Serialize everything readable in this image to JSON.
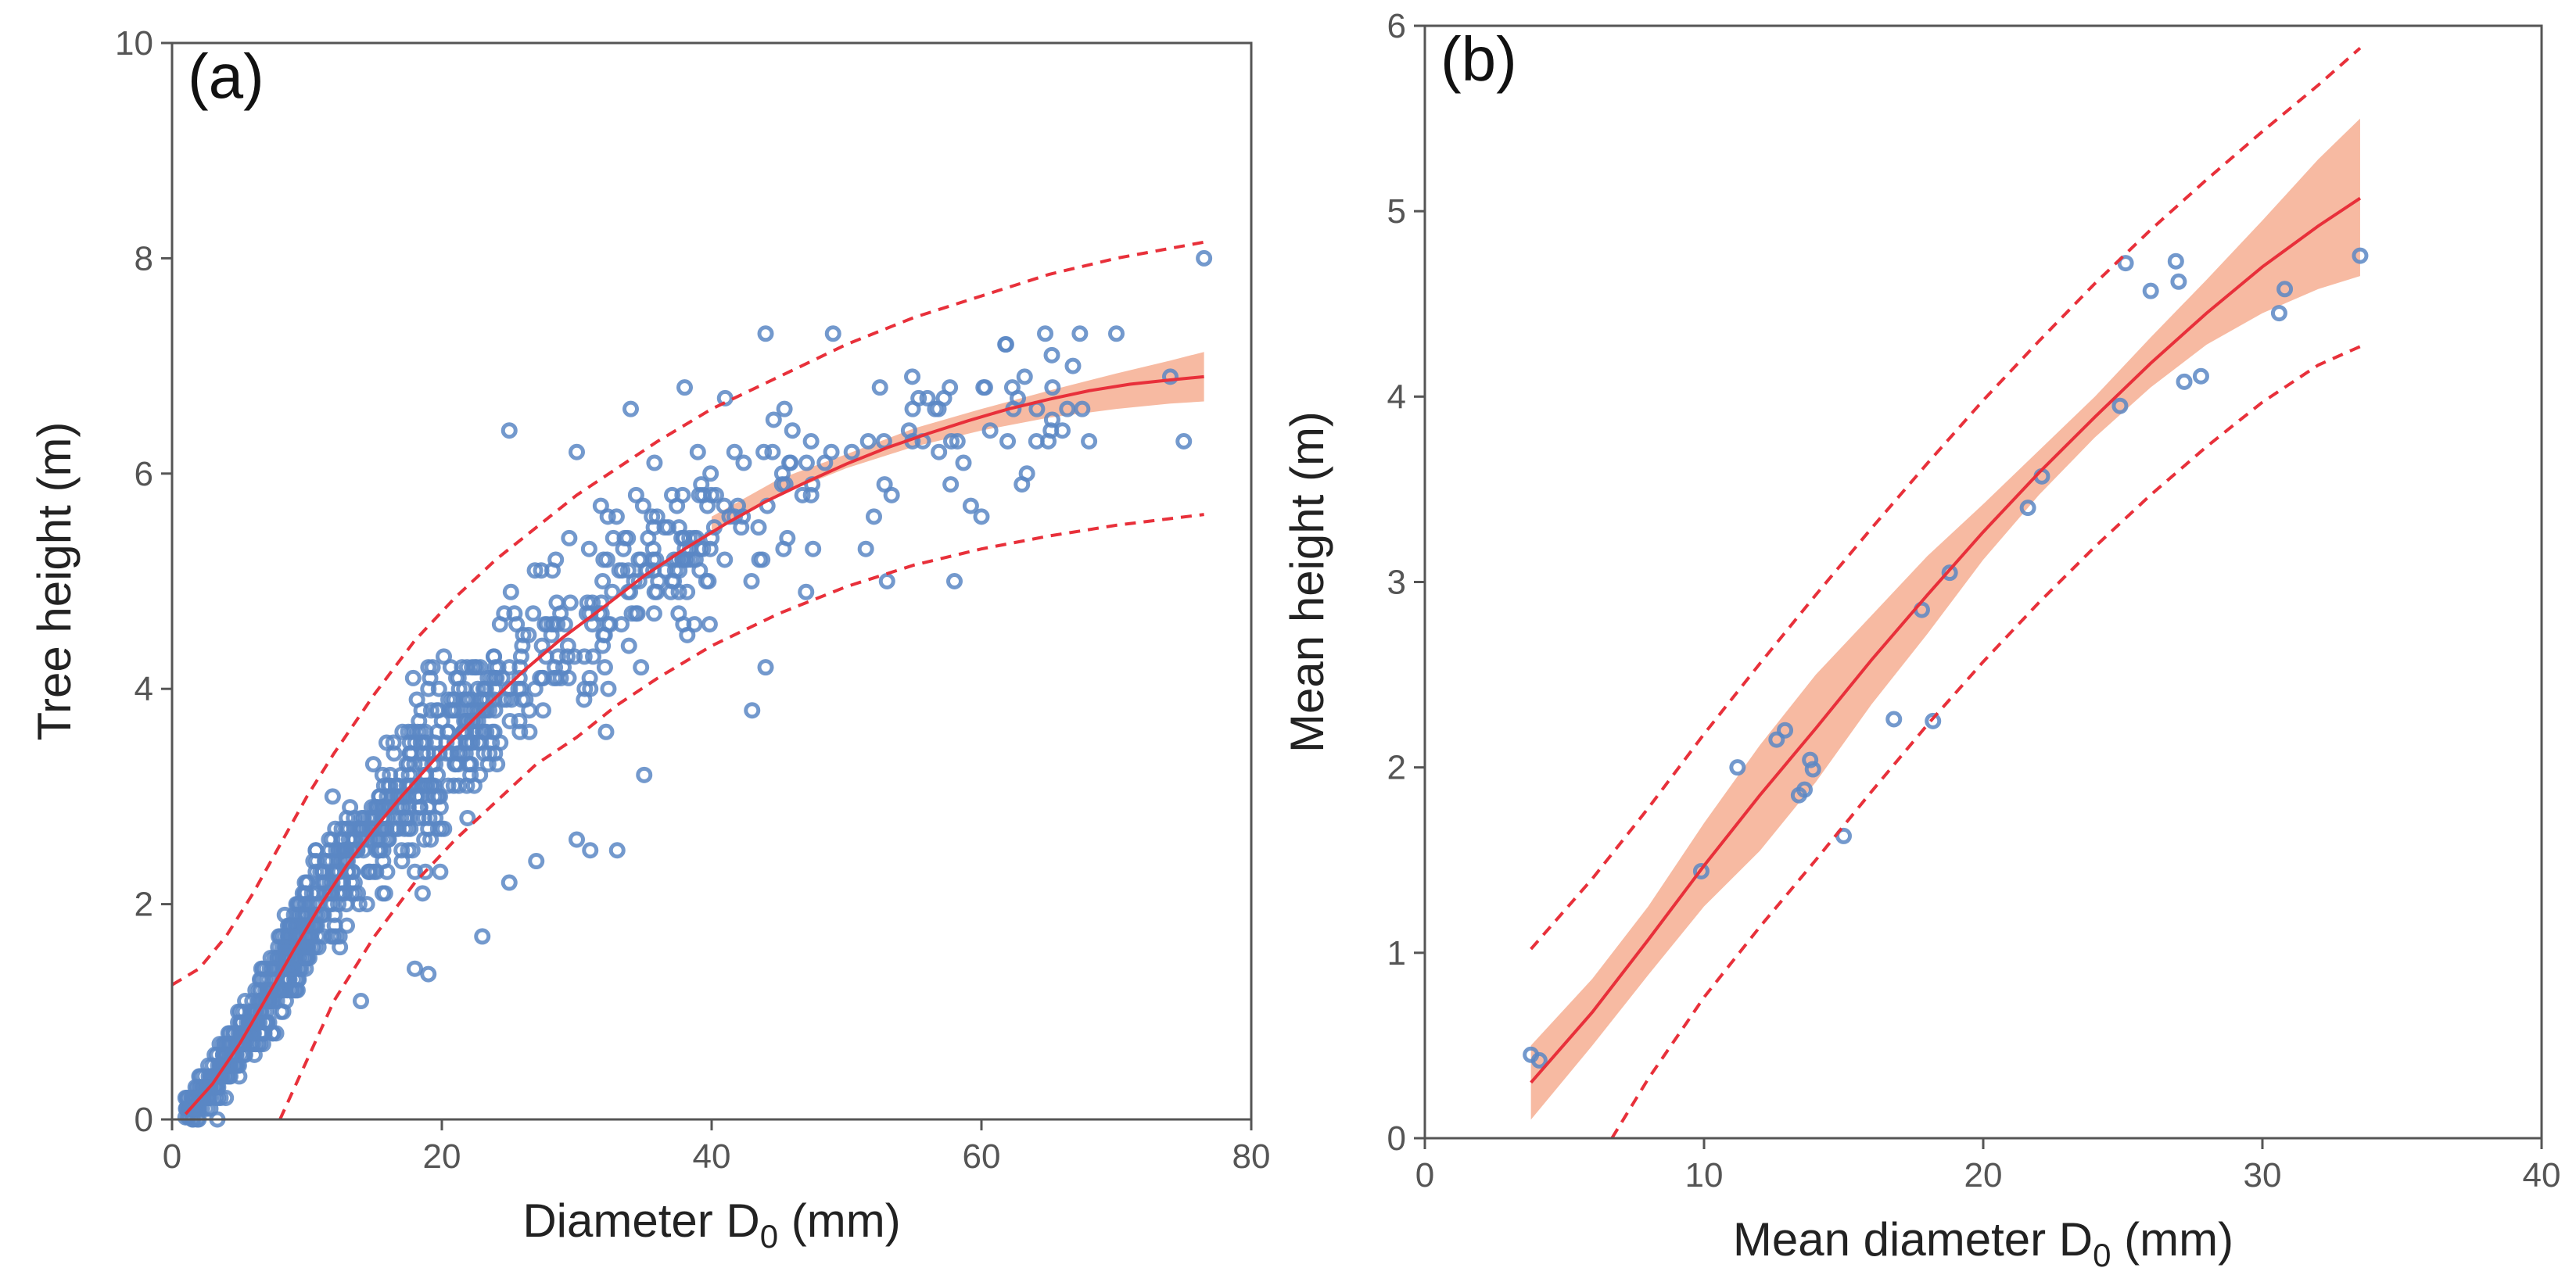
{
  "colors": {
    "points": "#5b87c4",
    "fit_line": "#e8303a",
    "band": "#f4a383",
    "prediction": "#e8303a",
    "axes": "#555555"
  },
  "chart_data": [
    {
      "type": "scatter",
      "panel_label": "(a)",
      "xlabel_main": "Diameter D",
      "xlabel_sub": "0",
      "xlabel_unit": " (mm)",
      "ylabel": "Tree height (m)",
      "xlim": [
        0,
        80
      ],
      "ylim": [
        0,
        10
      ],
      "xticks": [
        0,
        20,
        40,
        60,
        80
      ],
      "yticks": [
        0,
        2,
        4,
        6,
        8,
        10
      ],
      "generated_seed": 7,
      "series": [
        {
          "name": "observations",
          "kind": "points",
          "sampled_points": [
            [
              76.5,
              8.0
            ],
            [
              74,
              6.9
            ],
            [
              75,
              6.3
            ],
            [
              70,
              7.3
            ],
            [
              66,
              6.4
            ],
            [
              63,
              5.9
            ],
            [
              60,
              5.6
            ],
            [
              58,
              5.0
            ],
            [
              56,
              6.7
            ],
            [
              53,
              5.0
            ],
            [
              49,
              7.3
            ],
            [
              44,
              7.3
            ],
            [
              43,
              3.8
            ],
            [
              44,
              4.2
            ],
            [
              47,
              4.9
            ],
            [
              35,
              3.2
            ],
            [
              33,
              2.5
            ],
            [
              31,
              2.5
            ],
            [
              30,
              2.6
            ],
            [
              27,
              2.4
            ],
            [
              25,
              2.2
            ],
            [
              23,
              1.7
            ],
            [
              19,
              1.35
            ],
            [
              18,
              1.4
            ],
            [
              14,
              1.1
            ],
            [
              34,
              6.6
            ],
            [
              25,
              6.4
            ],
            [
              30,
              6.2
            ],
            [
              38,
              6.8
            ],
            [
              41,
              6.7
            ]
          ]
        },
        {
          "name": "fit",
          "kind": "line",
          "x": [
            1,
            3,
            5,
            7,
            9,
            11,
            13,
            15,
            17,
            20,
            23,
            26,
            29,
            32,
            35,
            38,
            41,
            44,
            47,
            50,
            53,
            56,
            59,
            62,
            65,
            68,
            71,
            74,
            76.5
          ],
          "y": [
            0.05,
            0.33,
            0.7,
            1.13,
            1.57,
            1.99,
            2.37,
            2.7,
            3.0,
            3.42,
            3.8,
            4.16,
            4.48,
            4.76,
            5.05,
            5.3,
            5.53,
            5.74,
            5.92,
            6.09,
            6.24,
            6.37,
            6.49,
            6.6,
            6.69,
            6.77,
            6.83,
            6.87,
            6.9
          ]
        },
        {
          "name": "confidence_band",
          "kind": "band",
          "x": [
            40,
            45,
            50,
            55,
            60,
            65,
            70,
            74,
            76.5
          ],
          "lower": [
            5.45,
            5.8,
            6.05,
            6.25,
            6.4,
            6.52,
            6.6,
            6.65,
            6.67
          ],
          "upper": [
            5.6,
            5.95,
            6.18,
            6.42,
            6.6,
            6.77,
            6.93,
            7.05,
            7.13
          ]
        },
        {
          "name": "prediction_upper",
          "kind": "dashed",
          "x": [
            0,
            2,
            4,
            6,
            8,
            10,
            12,
            15,
            18,
            21,
            24,
            27,
            30,
            33,
            36,
            40,
            45,
            50,
            55,
            60,
            65,
            70,
            76.5
          ],
          "y": [
            1.25,
            1.4,
            1.7,
            2.1,
            2.55,
            3.0,
            3.4,
            3.95,
            4.45,
            4.85,
            5.2,
            5.5,
            5.8,
            6.05,
            6.3,
            6.6,
            6.9,
            7.2,
            7.45,
            7.65,
            7.85,
            8.0,
            8.15
          ]
        },
        {
          "name": "prediction_lower",
          "kind": "dashed",
          "x": [
            8,
            10,
            12,
            15,
            18,
            21,
            24,
            27,
            30,
            33,
            36,
            40,
            45,
            50,
            55,
            60,
            65,
            70,
            76.5
          ],
          "y": [
            0.0,
            0.55,
            1.1,
            1.7,
            2.2,
            2.6,
            2.95,
            3.3,
            3.55,
            3.85,
            4.1,
            4.4,
            4.7,
            4.95,
            5.15,
            5.3,
            5.42,
            5.52,
            5.62
          ]
        }
      ]
    },
    {
      "type": "scatter",
      "panel_label": "(b)",
      "xlabel_main": "Mean diameter D",
      "xlabel_sub": "0",
      "xlabel_unit": " (mm)",
      "ylabel": "Mean height (m)",
      "xlim": [
        0,
        40
      ],
      "ylim": [
        0,
        6
      ],
      "xticks": [
        0,
        10,
        20,
        30,
        40
      ],
      "yticks": [
        0,
        1,
        2,
        3,
        4,
        5,
        6
      ],
      "series": [
        {
          "name": "observations",
          "kind": "points",
          "points": [
            [
              3.8,
              0.45
            ],
            [
              4.1,
              0.42
            ],
            [
              9.9,
              1.44
            ],
            [
              11.2,
              2.0
            ],
            [
              12.6,
              2.15
            ],
            [
              12.9,
              2.2
            ],
            [
              13.4,
              1.85
            ],
            [
              13.6,
              1.88
            ],
            [
              13.8,
              2.04
            ],
            [
              13.9,
              1.99
            ],
            [
              15.0,
              1.63
            ],
            [
              16.8,
              2.26
            ],
            [
              17.8,
              2.85
            ],
            [
              18.2,
              2.25
            ],
            [
              18.8,
              3.05
            ],
            [
              21.6,
              3.4
            ],
            [
              22.1,
              3.57
            ],
            [
              24.9,
              3.95
            ],
            [
              25.1,
              4.72
            ],
            [
              26.0,
              4.57
            ],
            [
              26.9,
              4.73
            ],
            [
              27.0,
              4.62
            ],
            [
              27.2,
              4.08
            ],
            [
              27.8,
              4.11
            ],
            [
              30.6,
              4.45
            ],
            [
              30.8,
              4.58
            ],
            [
              33.5,
              4.76
            ]
          ]
        },
        {
          "name": "fit",
          "kind": "line",
          "x": [
            3.8,
            6,
            8,
            10,
            12,
            14,
            16,
            18,
            20,
            22,
            24,
            26,
            28,
            30,
            32,
            33.5
          ],
          "y": [
            0.3,
            0.68,
            1.07,
            1.47,
            1.85,
            2.21,
            2.58,
            2.93,
            3.27,
            3.59,
            3.89,
            4.18,
            4.45,
            4.7,
            4.92,
            5.07
          ]
        },
        {
          "name": "confidence_band",
          "kind": "band",
          "x": [
            3.8,
            6,
            8,
            10,
            12,
            14,
            16,
            18,
            20,
            22,
            24,
            26,
            28,
            30,
            32,
            33.5
          ],
          "lower": [
            0.1,
            0.5,
            0.88,
            1.25,
            1.55,
            1.92,
            2.34,
            2.72,
            3.12,
            3.47,
            3.78,
            4.05,
            4.28,
            4.45,
            4.58,
            4.65
          ],
          "upper": [
            0.5,
            0.86,
            1.25,
            1.7,
            2.12,
            2.5,
            2.82,
            3.14,
            3.42,
            3.71,
            4.0,
            4.32,
            4.63,
            4.95,
            5.28,
            5.5
          ]
        },
        {
          "name": "prediction_upper",
          "kind": "dashed",
          "x": [
            3.8,
            6,
            8,
            10,
            12,
            14,
            16,
            18,
            20,
            22,
            24,
            26,
            28,
            30,
            32,
            33.5
          ],
          "y": [
            1.02,
            1.4,
            1.78,
            2.18,
            2.56,
            2.93,
            3.29,
            3.64,
            3.98,
            4.3,
            4.61,
            4.9,
            5.17,
            5.43,
            5.68,
            5.88
          ]
        },
        {
          "name": "prediction_lower",
          "kind": "dashed",
          "x": [
            6.7,
            8,
            10,
            12,
            14,
            16,
            18,
            20,
            22,
            24,
            26,
            28,
            30,
            32,
            33.5
          ],
          "y": [
            0.0,
            0.32,
            0.76,
            1.14,
            1.5,
            1.87,
            2.23,
            2.57,
            2.89,
            3.19,
            3.47,
            3.73,
            3.97,
            4.17,
            4.27
          ]
        }
      ]
    }
  ]
}
